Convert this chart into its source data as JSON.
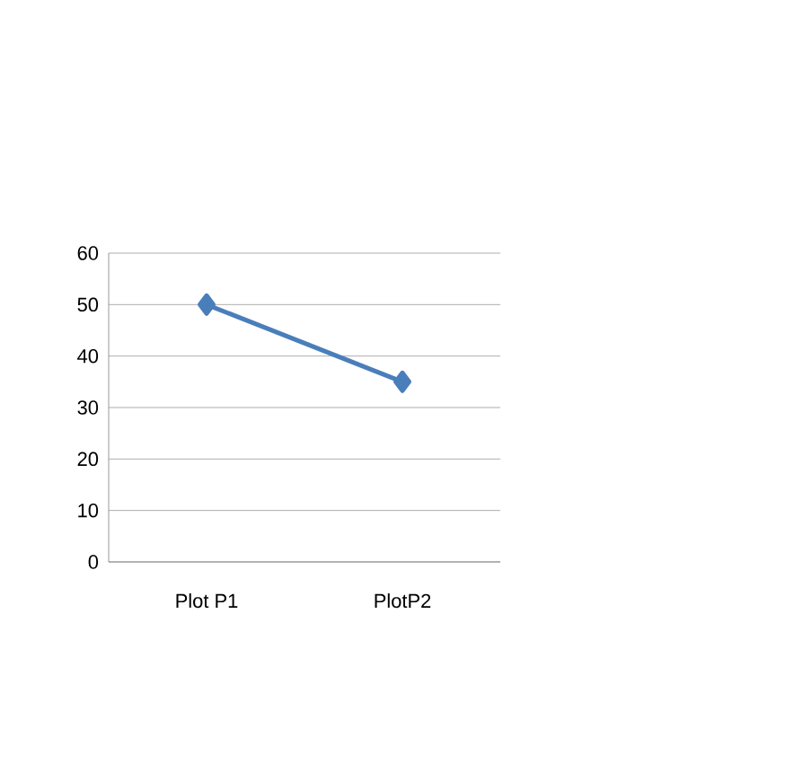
{
  "chart_data": {
    "type": "line",
    "categories": [
      "Plot P1",
      "PlotP2"
    ],
    "series": [
      {
        "color": "#4a7ebb",
        "values": [
          50,
          35
        ]
      }
    ],
    "ylim": [
      0,
      60
    ],
    "yticks": [
      0,
      10,
      20,
      30,
      40,
      50,
      60
    ],
    "grid": "y",
    "marker": "diamond",
    "line_style": "solid"
  }
}
